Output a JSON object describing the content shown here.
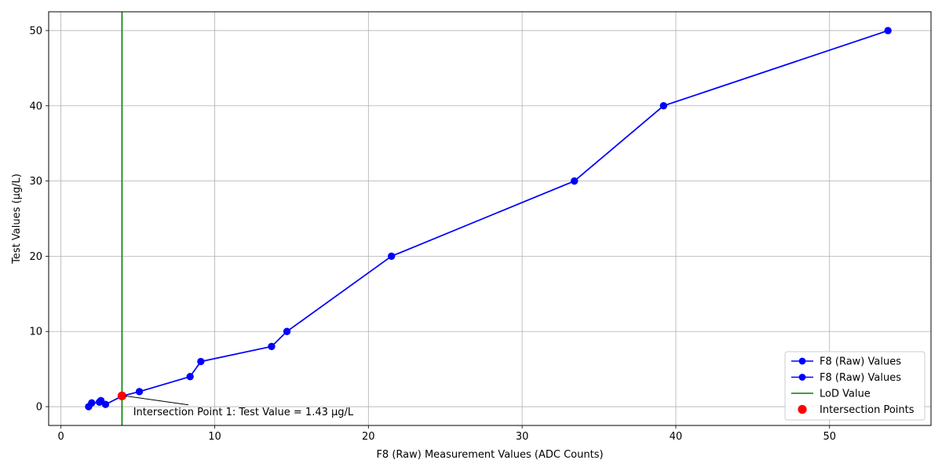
{
  "chart_data": {
    "type": "line",
    "xlabel": "F8 (Raw) Measurement Values (ADC Counts)",
    "ylabel": "Test Values (µg/L)",
    "xlim": [
      -0.8,
      56.6
    ],
    "ylim": [
      -2.5,
      52.5
    ],
    "xticks": [
      0,
      10,
      20,
      30,
      40,
      50
    ],
    "yticks": [
      0,
      10,
      20,
      30,
      40,
      50
    ],
    "grid": true,
    "legend_position": "lower-right",
    "series": [
      {
        "name": "F8 (Raw) Values",
        "color": "#0000ff",
        "marker": "circle",
        "x": [
          1.8,
          2.0,
          2.5,
          2.6,
          2.9,
          4.0,
          5.1,
          8.4,
          9.1,
          13.7,
          14.7,
          21.5,
          33.4,
          39.2,
          53.8
        ],
        "y": [
          0,
          0.5,
          0.6,
          0.8,
          0.3,
          1.43,
          2,
          4,
          6,
          8,
          10,
          20,
          30,
          40,
          50
        ]
      },
      {
        "name": "F8 (Raw) Values",
        "color": "#0000ff",
        "marker": "circle",
        "x": [
          1.8,
          2.0,
          2.5,
          2.6,
          2.9,
          4.0,
          5.1,
          8.4,
          9.1,
          13.7,
          14.7,
          21.5,
          33.4,
          39.2,
          53.8
        ],
        "y": [
          0,
          0.5,
          0.6,
          0.8,
          0.3,
          1.43,
          2,
          4,
          6,
          8,
          10,
          20,
          30,
          40,
          50
        ]
      }
    ],
    "lod_line": {
      "name": "LoD Value",
      "x": 3.97,
      "color": "#008000"
    },
    "intersection_points": {
      "name": "Intersection Points",
      "color": "#ff0000",
      "points": [
        {
          "x": 3.97,
          "y": 1.43
        }
      ]
    },
    "annotation": {
      "text": "Intersection Point 1: Test Value = 1.43 µg/L",
      "point": {
        "x": 3.97,
        "y": 1.43
      },
      "text_anchor_point": {
        "x": 4.7,
        "y": -0.7
      }
    }
  }
}
